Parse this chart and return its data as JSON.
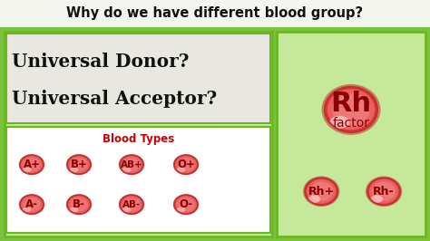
{
  "bg_color": "#7dc23e",
  "title_text": "Why do we have different blood group?",
  "title_color": "#111111",
  "title_bg": "#f5f5f0",
  "donor_text1": "Universal Donor?",
  "donor_text2": "Universal Acceptor?",
  "donor_bg": "#e8e8e0",
  "blood_types_label": "Blood Types",
  "blood_box_bg": "#ffffff",
  "blood_types_row1": [
    "A+",
    "B+",
    "AB+",
    "O+"
  ],
  "blood_types_row2": [
    "A-",
    "B-",
    "AB-",
    "O-"
  ],
  "panel_bg": "#c5e89a",
  "panel_edge": "#6ab820",
  "cell_face": "#e84040",
  "cell_dark": "#b01818",
  "cell_light": "#ff9999",
  "cell_text": "#8b0000",
  "rh_label": "Rh",
  "rh_sub": "factor",
  "rh_plus": "Rh+",
  "rh_minus": "Rh-"
}
